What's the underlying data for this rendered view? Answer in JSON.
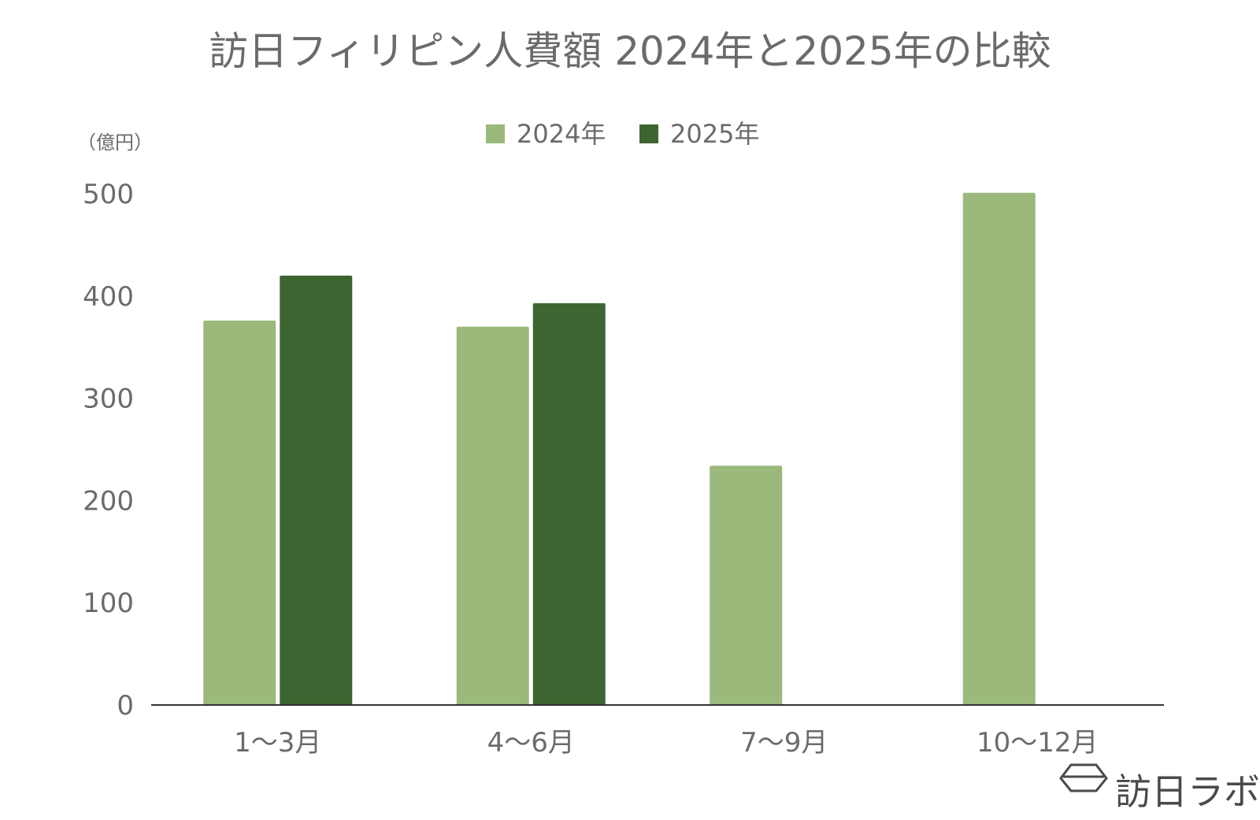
{
  "chart_data": {
    "type": "bar",
    "title": "訪日フィリピン人費額 2024年と2025年の比較",
    "ylabel": "（億円）",
    "xlabel": "",
    "categories": [
      "1～3月",
      "4～6月",
      "7～9月",
      "10～12月"
    ],
    "series": [
      {
        "name": "2024年",
        "values": [
          376,
          370,
          234,
          501
        ],
        "color": "#9ab97b"
      },
      {
        "name": "2025年",
        "values": [
          420,
          393,
          null,
          null
        ],
        "color": "#3e6531"
      }
    ],
    "ylim": [
      0,
      500
    ],
    "yticks": [
      0,
      100,
      200,
      300,
      400,
      500
    ],
    "grid": false,
    "legend": "top-center"
  },
  "brand": {
    "name": "訪日ラボ",
    "icon": "hexagon-logo-icon"
  }
}
